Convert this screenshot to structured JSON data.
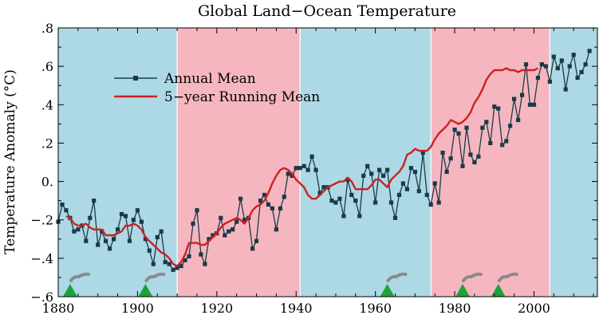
{
  "chart_data": {
    "type": "line",
    "title": "Global Land−Ocean Temperature",
    "xlabel": "",
    "ylabel": "Temperature Anomaly (°C)",
    "xlim": [
      1880,
      2016
    ],
    "ylim": [
      -0.6,
      0.8
    ],
    "x_ticks": [
      1880,
      1900,
      1920,
      1940,
      1960,
      1980,
      2000
    ],
    "x_tick_labels": [
      "1880",
      "1900",
      "1920",
      "1940",
      "1960",
      "1980",
      "2000"
    ],
    "y_ticks": [
      -0.6,
      -0.4,
      -0.2,
      0.0,
      0.2,
      0.4,
      0.6,
      0.8
    ],
    "y_tick_labels": [
      "−.6",
      "−.4",
      "−.2",
      "0.",
      ".2",
      ".4",
      ".6",
      ".8"
    ],
    "grid": false,
    "legend_placement": "top-left",
    "background_bands": [
      {
        "start": 1880,
        "end": 1910,
        "color": "#add8e6"
      },
      {
        "start": 1910,
        "end": 1941,
        "color": "#f6b6bf"
      },
      {
        "start": 1941,
        "end": 1974,
        "color": "#add8e6"
      },
      {
        "start": 1974,
        "end": 2004,
        "color": "#f6b6bf"
      },
      {
        "start": 2004,
        "end": 2016,
        "color": "#add8e6"
      }
    ],
    "volcano_markers": [
      {
        "year": 1883,
        "icon": "volcano-icon"
      },
      {
        "year": 1902,
        "icon": "volcano-icon"
      },
      {
        "year": 1963,
        "icon": "volcano-icon"
      },
      {
        "year": 1982,
        "icon": "volcano-icon"
      },
      {
        "year": 1991,
        "icon": "volcano-icon"
      }
    ],
    "series": [
      {
        "name": "Annual Mean",
        "color": "#1a3a48",
        "marker": "square",
        "x_start": 1880,
        "values": [
          -0.21,
          -0.12,
          -0.15,
          -0.19,
          -0.26,
          -0.25,
          -0.23,
          -0.31,
          -0.19,
          -0.1,
          -0.33,
          -0.26,
          -0.31,
          -0.35,
          -0.3,
          -0.25,
          -0.17,
          -0.18,
          -0.31,
          -0.2,
          -0.15,
          -0.21,
          -0.3,
          -0.36,
          -0.43,
          -0.29,
          -0.26,
          -0.42,
          -0.43,
          -0.46,
          -0.45,
          -0.44,
          -0.41,
          -0.39,
          -0.22,
          -0.15,
          -0.38,
          -0.43,
          -0.3,
          -0.28,
          -0.27,
          -0.19,
          -0.28,
          -0.26,
          -0.25,
          -0.21,
          -0.09,
          -0.2,
          -0.19,
          -0.35,
          -0.31,
          -0.1,
          -0.07,
          -0.12,
          -0.14,
          -0.25,
          -0.14,
          -0.08,
          0.04,
          0.03,
          0.07,
          0.07,
          0.08,
          0.06,
          0.13,
          0.06,
          -0.06,
          -0.03,
          -0.03,
          -0.1,
          -0.11,
          -0.09,
          -0.18,
          0.01,
          -0.07,
          -0.1,
          -0.18,
          0.03,
          0.08,
          0.04,
          -0.11,
          0.06,
          0.03,
          0.06,
          -0.11,
          -0.19,
          -0.07,
          -0.01,
          -0.04,
          0.07,
          0.05,
          -0.05,
          0.15,
          -0.07,
          -0.12,
          -0.01,
          -0.11,
          0.15,
          0.05,
          0.12,
          0.27,
          0.25,
          0.08,
          0.28,
          0.14,
          0.1,
          0.13,
          0.28,
          0.31,
          0.2,
          0.39,
          0.38,
          0.19,
          0.21,
          0.29,
          0.43,
          0.32,
          0.45,
          0.61,
          0.4,
          0.4,
          0.54,
          0.61,
          0.6,
          0.52,
          0.65,
          0.59,
          0.63,
          0.48,
          0.6,
          0.66,
          0.54,
          0.57,
          0.61,
          0.68
        ]
      },
      {
        "name": "5−year Running Mean",
        "color": "#cc2222",
        "marker": "none",
        "x_start": 1882,
        "values": [
          -0.18,
          -0.19,
          -0.22,
          -0.23,
          -0.23,
          -0.22,
          -0.24,
          -0.25,
          -0.25,
          -0.25,
          -0.28,
          -0.28,
          -0.28,
          -0.27,
          -0.26,
          -0.23,
          -0.23,
          -0.22,
          -0.23,
          -0.25,
          -0.29,
          -0.31,
          -0.33,
          -0.35,
          -0.37,
          -0.38,
          -0.4,
          -0.43,
          -0.44,
          -0.42,
          -0.38,
          -0.32,
          -0.32,
          -0.32,
          -0.33,
          -0.33,
          -0.31,
          -0.29,
          -0.27,
          -0.24,
          -0.22,
          -0.21,
          -0.2,
          -0.19,
          -0.2,
          -0.22,
          -0.19,
          -0.15,
          -0.13,
          -0.12,
          -0.1,
          -0.06,
          -0.01,
          0.03,
          0.06,
          0.07,
          0.06,
          0.04,
          0.01,
          -0.01,
          -0.03,
          -0.07,
          -0.09,
          -0.09,
          -0.07,
          -0.05,
          -0.03,
          -0.02,
          -0.01,
          0.0,
          0.0,
          0.02,
          0.0,
          -0.04,
          -0.04,
          -0.04,
          -0.04,
          -0.02,
          0.01,
          0.01,
          -0.01,
          -0.03,
          0.01,
          0.03,
          0.05,
          0.08,
          0.14,
          0.15,
          0.17,
          0.16,
          0.16,
          0.16,
          0.18,
          0.22,
          0.25,
          0.27,
          0.29,
          0.32,
          0.31,
          0.3,
          0.31,
          0.33,
          0.36,
          0.41,
          0.44,
          0.48,
          0.53,
          0.56,
          0.58,
          0.58,
          0.58,
          0.59,
          0.58,
          0.58,
          0.57,
          0.58,
          0.58,
          0.58,
          0.58,
          0.59
        ]
      }
    ]
  }
}
